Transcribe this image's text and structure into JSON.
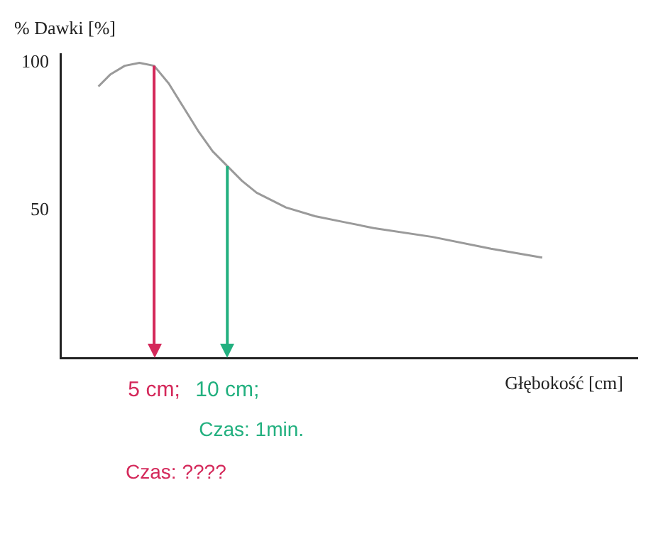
{
  "chart_data": {
    "type": "line",
    "ylabel": "% Dawki [%]",
    "xlabel": "Głębokość [cm]",
    "xlim": [
      -1.4,
      38
    ],
    "xticks": [
      {
        "value": 5,
        "label": "5 cm;"
      },
      {
        "value": 10,
        "label": "10 cm;"
      }
    ],
    "ylim": [
      0,
      103
    ],
    "yticks": [
      50,
      100
    ],
    "grid": false,
    "legend": false,
    "marker": "none",
    "series": [
      {
        "color": "#9a9a9a",
        "x": [
          1.2,
          2,
          3,
          4,
          5,
          6,
          7,
          8,
          9,
          10,
          11,
          12,
          14,
          16,
          18,
          20,
          24,
          28,
          31.5
        ],
        "values": [
          92,
          96,
          99,
          100,
          99,
          93,
          85,
          77,
          70,
          65,
          60,
          56,
          51,
          48,
          46,
          44,
          41,
          37,
          34
        ]
      }
    ],
    "ref_lines": [
      {
        "axis": "x",
        "value": 5,
        "color": "#d4285a"
      },
      {
        "axis": "x",
        "value": 10,
        "color": "#22b07f"
      }
    ],
    "annotations": [
      "Czas: 1min.",
      "Czas: ????"
    ]
  }
}
